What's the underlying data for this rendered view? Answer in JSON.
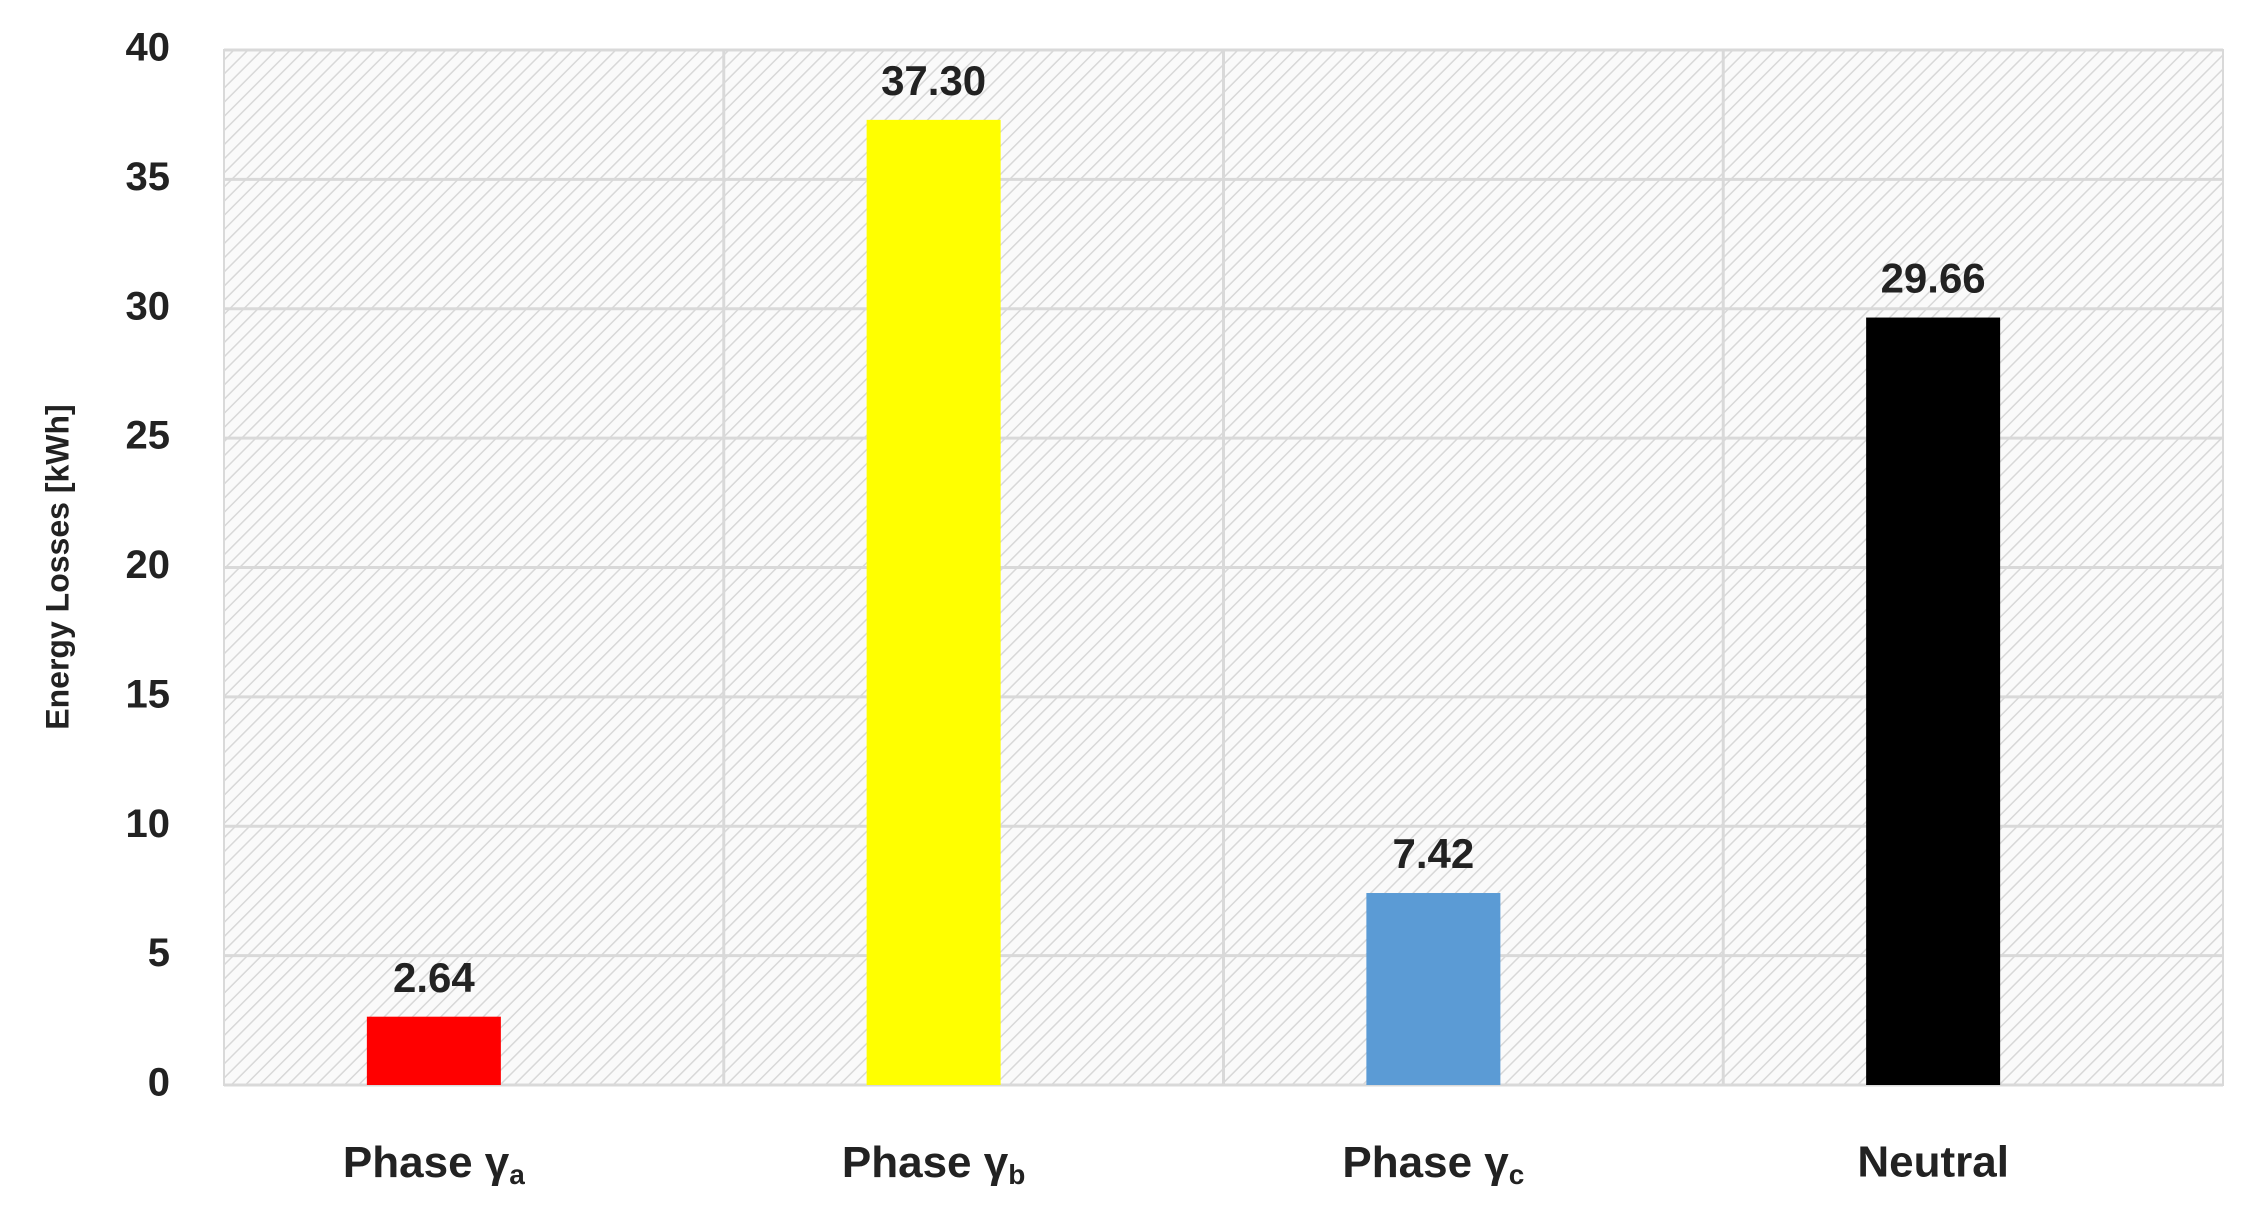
{
  "chart_data": {
    "type": "bar",
    "y_label": "Energy Losses [kWh]",
    "categories": [
      "Phase γa",
      "Phase γb",
      "Phase γc",
      "Neutral"
    ],
    "values": [
      2.64,
      37.3,
      7.42,
      29.66
    ],
    "value_labels": [
      "2.64",
      "37.30",
      "7.42",
      "29.66"
    ],
    "colors": [
      "#ff0000",
      "#ffff00",
      "#5b9bd5",
      "#000000"
    ],
    "ylim": [
      0,
      40
    ],
    "yticks": [
      0,
      5,
      10,
      15,
      20,
      25,
      30,
      35,
      40
    ],
    "grid": true
  }
}
